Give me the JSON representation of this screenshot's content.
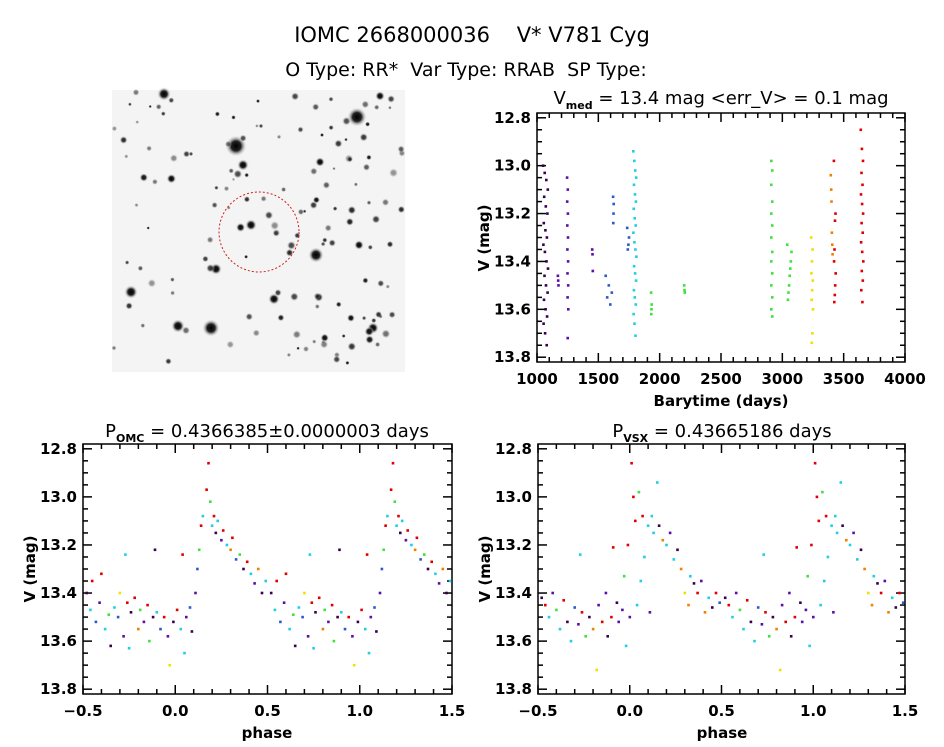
{
  "header": {
    "line1": "IOMC 2668000036    V* V781 Cyg",
    "line2": "O Type: RR*  Var Type: RRAB  SP Type:"
  },
  "palette": [
    "#3a0050",
    "#5a10a8",
    "#2a5cc8",
    "#20d0e0",
    "#40e040",
    "#f0e000",
    "#f08000",
    "#e00000"
  ],
  "finder_image": {
    "marker": "dashed red circle around target",
    "marker_color": "#d02020"
  },
  "chart_data": [
    {
      "type": "scatter",
      "title_main": "V",
      "title_sub": "med",
      "title_rest": " = 13.4 mag <err_V> = 0.1 mag",
      "xlabel": "Barytime (days)",
      "ylabel": "V (mag)",
      "xlim": [
        1000,
        4000
      ],
      "ylim": [
        13.82,
        12.78
      ],
      "y_inverted": true,
      "xticks": [
        "1000",
        "1500",
        "2000",
        "2500",
        "3000",
        "3500",
        "4000"
      ],
      "yticks": [
        "12.8",
        "13.0",
        "13.2",
        "13.4",
        "13.6",
        "13.8"
      ],
      "groups": [
        {
          "t": [
            1050,
            1090
          ],
          "c": 0,
          "v": [
            13.0,
            13.03,
            13.06,
            13.1,
            13.13,
            13.17,
            13.2,
            13.24,
            13.27,
            13.3,
            13.33,
            13.36,
            13.4,
            13.43,
            13.46,
            13.5,
            13.53,
            13.56,
            13.6,
            13.63,
            13.66,
            13.7,
            13.75
          ]
        },
        {
          "t": [
            1170,
            1175
          ],
          "c": 1,
          "v": [
            13.46,
            13.48,
            13.5
          ]
        },
        {
          "t": [
            1245,
            1255
          ],
          "c": 1,
          "v": [
            13.05,
            13.1,
            13.15,
            13.2,
            13.25,
            13.3,
            13.35,
            13.4,
            13.45,
            13.5,
            13.55,
            13.6,
            13.72
          ]
        },
        {
          "t": [
            1450,
            1455
          ],
          "c": 1,
          "v": [
            13.35,
            13.37,
            13.44
          ]
        },
        {
          "t": [
            1560,
            1610
          ],
          "c": 2,
          "v": [
            13.46,
            13.5,
            13.53,
            13.55,
            13.58
          ]
        },
        {
          "t": [
            1620,
            1625
          ],
          "c": 2,
          "v": [
            13.13,
            13.16,
            13.2,
            13.24
          ]
        },
        {
          "t": [
            1735,
            1750
          ],
          "c": 2,
          "v": [
            13.26,
            13.3,
            13.33,
            13.35
          ]
        },
        {
          "t": [
            1785,
            1810
          ],
          "c": 3,
          "v": [
            12.94,
            12.98,
            13.02,
            13.05,
            13.08,
            13.12,
            13.15,
            13.18,
            13.22,
            13.25,
            13.28,
            13.32,
            13.35,
            13.38,
            13.42,
            13.45,
            13.48,
            13.52,
            13.55,
            13.58,
            13.62,
            13.66,
            13.71
          ]
        },
        {
          "t": [
            1930,
            1935
          ],
          "c": 4,
          "v": [
            13.53,
            13.58,
            13.6,
            13.62
          ]
        },
        {
          "t": [
            2200,
            2205
          ],
          "c": 4,
          "v": [
            13.5,
            13.52,
            13.53
          ]
        },
        {
          "t": [
            2910,
            2925
          ],
          "c": 4,
          "v": [
            12.98,
            13.02,
            13.08,
            13.15,
            13.2,
            13.25,
            13.3,
            13.36,
            13.4,
            13.45,
            13.5,
            13.55,
            13.6,
            13.63
          ]
        },
        {
          "t": [
            3040,
            3075
          ],
          "c": 4,
          "v": [
            13.33,
            13.36,
            13.4,
            13.43,
            13.46,
            13.5,
            13.53,
            13.56
          ]
        },
        {
          "t": [
            3235,
            3250
          ],
          "c": 5,
          "v": [
            13.3,
            13.35,
            13.4,
            13.45,
            13.48,
            13.52,
            13.56,
            13.6,
            13.7,
            13.74
          ]
        },
        {
          "t": [
            3395,
            3410
          ],
          "c": 6,
          "v": [
            13.04,
            13.1,
            13.15,
            13.28,
            13.33,
            13.37
          ]
        },
        {
          "t": [
            3420,
            3435
          ],
          "c": 7,
          "v": [
            12.98,
            13.2,
            13.23,
            13.35,
            13.4,
            13.45,
            13.5,
            13.54,
            13.57
          ]
        },
        {
          "t": [
            3640,
            3660
          ],
          "c": 7,
          "v": [
            12.85,
            12.93,
            12.98,
            13.03,
            13.08,
            13.12,
            13.16,
            13.2,
            13.24,
            13.28,
            13.32,
            13.36,
            13.4,
            13.44,
            13.48,
            13.52,
            13.57
          ]
        }
      ]
    },
    {
      "type": "scatter",
      "title_main": "P",
      "title_sub": "OMC",
      "title_rest": " = 0.4366385±0.0000003 days",
      "xlabel": "phase",
      "ylabel": "V (mag)",
      "xlim": [
        -0.5,
        1.5
      ],
      "ylim": [
        13.82,
        12.78
      ],
      "y_inverted": true,
      "phase_repeated": true,
      "xticks": [
        "−0.5",
        "0.0",
        "0.5",
        "1.0",
        "1.5"
      ],
      "yticks": [
        "12.8",
        "13.0",
        "13.2",
        "13.4",
        "13.6",
        "13.8"
      ],
      "points": [
        [
          -0.48,
          13.4,
          0
        ],
        [
          -0.46,
          13.47,
          3
        ],
        [
          -0.45,
          13.35,
          7
        ],
        [
          -0.43,
          13.52,
          2
        ],
        [
          -0.41,
          13.44,
          1
        ],
        [
          -0.4,
          13.32,
          7
        ],
        [
          -0.38,
          13.55,
          3
        ],
        [
          -0.36,
          13.49,
          4
        ],
        [
          -0.35,
          13.62,
          0
        ],
        [
          -0.33,
          13.46,
          3
        ],
        [
          -0.31,
          13.5,
          2
        ],
        [
          -0.3,
          13.4,
          5
        ],
        [
          -0.28,
          13.58,
          1
        ],
        [
          -0.27,
          13.24,
          3
        ],
        [
          -0.26,
          13.44,
          7
        ],
        [
          -0.25,
          13.63,
          3
        ],
        [
          -0.24,
          13.48,
          0
        ],
        [
          -0.22,
          13.42,
          7
        ],
        [
          -0.2,
          13.55,
          6
        ],
        [
          -0.19,
          13.47,
          4
        ],
        [
          -0.17,
          13.52,
          1
        ],
        [
          -0.15,
          13.45,
          7
        ],
        [
          -0.14,
          13.6,
          4
        ],
        [
          -0.12,
          13.5,
          0
        ],
        [
          -0.11,
          13.22,
          0
        ],
        [
          -0.1,
          13.48,
          3
        ],
        [
          -0.08,
          13.55,
          2
        ],
        [
          -0.06,
          13.5,
          7
        ],
        [
          -0.04,
          13.58,
          1
        ],
        [
          -0.03,
          13.7,
          5
        ],
        [
          -0.01,
          13.52,
          0
        ],
        [
          0.01,
          13.47,
          7
        ],
        [
          0.03,
          13.55,
          3
        ],
        [
          0.04,
          13.24,
          7
        ],
        [
          0.05,
          13.65,
          3
        ],
        [
          0.06,
          13.5,
          1
        ],
        [
          0.08,
          13.46,
          2
        ],
        [
          0.09,
          13.56,
          0
        ],
        [
          0.11,
          13.4,
          1
        ],
        [
          0.12,
          13.3,
          2
        ],
        [
          0.13,
          13.22,
          4
        ],
        [
          0.14,
          13.12,
          7
        ],
        [
          0.15,
          13.08,
          3
        ],
        [
          0.17,
          12.97,
          7
        ],
        [
          0.18,
          12.86,
          7
        ],
        [
          0.19,
          13.02,
          4
        ],
        [
          0.2,
          13.12,
          3
        ],
        [
          0.21,
          13.08,
          7
        ],
        [
          0.22,
          13.15,
          0
        ],
        [
          0.23,
          13.1,
          3
        ],
        [
          0.25,
          13.18,
          1
        ],
        [
          0.26,
          13.14,
          7
        ],
        [
          0.28,
          13.2,
          3
        ],
        [
          0.3,
          13.22,
          6
        ],
        [
          0.31,
          13.17,
          7
        ],
        [
          0.33,
          13.26,
          2
        ],
        [
          0.35,
          13.24,
          4
        ],
        [
          0.37,
          13.3,
          0
        ],
        [
          0.39,
          13.27,
          7
        ],
        [
          0.41,
          13.32,
          3
        ],
        [
          0.43,
          13.36,
          1
        ],
        [
          0.45,
          13.3,
          6
        ],
        [
          0.47,
          13.4,
          0
        ],
        [
          0.49,
          13.35,
          3
        ]
      ]
    },
    {
      "type": "scatter",
      "title_main": "P",
      "title_sub": "VSX",
      "title_rest": " = 0.43665186 days",
      "xlabel": "phase",
      "ylabel": "V (mag)",
      "xlim": [
        -0.5,
        1.5
      ],
      "ylim": [
        13.82,
        12.78
      ],
      "y_inverted": true,
      "phase_repeated": true,
      "xticks": [
        "−0.5",
        "0.0",
        "0.5",
        "1.0",
        "1.5"
      ],
      "yticks": [
        "12.8",
        "13.0",
        "13.2",
        "13.4",
        "13.6",
        "13.8"
      ],
      "points": [
        [
          -0.48,
          13.42,
          0
        ],
        [
          -0.46,
          13.45,
          7
        ],
        [
          -0.44,
          13.5,
          3
        ],
        [
          -0.42,
          13.4,
          1
        ],
        [
          -0.4,
          13.47,
          4
        ],
        [
          -0.38,
          13.55,
          3
        ],
        [
          -0.36,
          13.43,
          7
        ],
        [
          -0.34,
          13.52,
          0
        ],
        [
          -0.32,
          13.6,
          3
        ],
        [
          -0.3,
          13.46,
          2
        ],
        [
          -0.28,
          13.53,
          1
        ],
        [
          -0.27,
          13.24,
          3
        ],
        [
          -0.26,
          13.48,
          7
        ],
        [
          -0.24,
          13.58,
          4
        ],
        [
          -0.22,
          13.5,
          0
        ],
        [
          -0.2,
          13.55,
          6
        ],
        [
          -0.18,
          13.72,
          5
        ],
        [
          -0.17,
          13.45,
          1
        ],
        [
          -0.15,
          13.52,
          7
        ],
        [
          -0.13,
          13.4,
          1
        ],
        [
          -0.12,
          13.58,
          0
        ],
        [
          -0.1,
          13.5,
          7
        ],
        [
          -0.09,
          13.21,
          7
        ],
        [
          -0.07,
          13.44,
          0
        ],
        [
          -0.06,
          13.52,
          1
        ],
        [
          -0.04,
          13.47,
          1
        ],
        [
          -0.03,
          13.33,
          4
        ],
        [
          -0.02,
          13.62,
          3
        ],
        [
          -0.01,
          13.2,
          7
        ],
        [
          0.0,
          13.5,
          1
        ],
        [
          0.01,
          12.86,
          7
        ],
        [
          0.02,
          13.0,
          7
        ],
        [
          0.03,
          13.1,
          7
        ],
        [
          0.04,
          13.45,
          3
        ],
        [
          0.05,
          12.98,
          4
        ],
        [
          0.06,
          13.35,
          3
        ],
        [
          0.07,
          13.08,
          7
        ],
        [
          0.08,
          13.25,
          3
        ],
        [
          0.1,
          13.12,
          3
        ],
        [
          0.11,
          13.48,
          1
        ],
        [
          0.12,
          13.08,
          3
        ],
        [
          0.13,
          13.15,
          3
        ],
        [
          0.15,
          12.94,
          3
        ],
        [
          0.16,
          13.12,
          0
        ],
        [
          0.18,
          13.18,
          6
        ],
        [
          0.2,
          13.2,
          3
        ],
        [
          0.22,
          13.15,
          1
        ],
        [
          0.24,
          13.26,
          3
        ],
        [
          0.26,
          13.22,
          0
        ],
        [
          0.28,
          13.3,
          6
        ],
        [
          0.3,
          13.4,
          5
        ],
        [
          0.32,
          13.45,
          6
        ],
        [
          0.33,
          13.33,
          3
        ],
        [
          0.35,
          13.36,
          0
        ],
        [
          0.37,
          13.4,
          7
        ],
        [
          0.39,
          13.35,
          1
        ],
        [
          0.41,
          13.48,
          6
        ],
        [
          0.43,
          13.42,
          3
        ],
        [
          0.45,
          13.46,
          0
        ],
        [
          0.47,
          13.4,
          7
        ],
        [
          0.49,
          13.44,
          2
        ]
      ]
    }
  ]
}
